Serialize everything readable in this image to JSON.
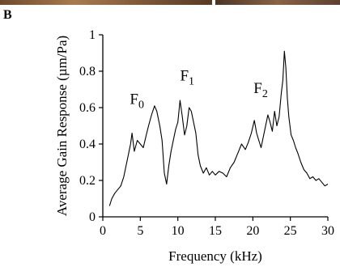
{
  "panel_label": "B",
  "chart_data": {
    "type": "line",
    "title": "",
    "xlabel": "Frequency (kHz)",
    "ylabel": "Average Gain Response (µm/Pa)",
    "xlim": [
      0,
      30
    ],
    "ylim": [
      0,
      1
    ],
    "xticks": [
      0,
      5,
      10,
      15,
      20,
      25,
      30
    ],
    "yticks": [
      0,
      0.2,
      0.4,
      0.6,
      0.8,
      1
    ],
    "ytick_labels": [
      "0",
      "0.2",
      "0.4",
      "0.6",
      "0.8",
      "1"
    ],
    "grid": false,
    "annotations": [
      {
        "text": "F",
        "sub": "0",
        "x": 3.6,
        "y": 0.62
      },
      {
        "text": "F",
        "sub": "1",
        "x": 10.3,
        "y": 0.75
      },
      {
        "text": "F",
        "sub": "2",
        "x": 20.1,
        "y": 0.68
      }
    ],
    "series": [
      {
        "x": [
          0.9,
          1.2,
          1.6,
          2.0,
          2.4,
          2.8,
          3.1,
          3.4,
          3.7,
          3.9,
          4.2,
          4.6,
          5.0,
          5.4,
          5.8,
          6.1,
          6.5,
          6.9,
          7.2,
          7.6,
          7.9,
          8.2,
          8.5,
          8.8,
          9.1,
          9.4,
          9.7,
          10.0,
          10.3,
          10.6,
          10.9,
          11.2,
          11.5,
          11.8,
          12.1,
          12.4,
          12.7,
          13.0,
          13.4,
          13.8,
          14.2,
          14.6,
          15.0,
          15.5,
          16.0,
          16.5,
          17.0,
          17.5,
          18.0,
          18.5,
          19.0,
          19.4,
          19.8,
          20.2,
          20.5,
          20.8,
          21.1,
          21.4,
          21.7,
          22.0,
          22.3,
          22.6,
          22.9,
          23.2,
          23.5,
          23.8,
          24.0,
          24.2,
          24.4,
          24.6,
          24.8,
          25.1,
          25.4,
          25.7,
          26.0,
          26.4,
          26.8,
          27.2,
          27.6,
          28.0,
          28.4,
          28.8,
          29.2,
          29.6,
          30.0
        ],
        "y": [
          0.06,
          0.1,
          0.13,
          0.15,
          0.17,
          0.22,
          0.28,
          0.34,
          0.4,
          0.46,
          0.36,
          0.42,
          0.4,
          0.38,
          0.45,
          0.5,
          0.56,
          0.61,
          0.58,
          0.5,
          0.42,
          0.24,
          0.18,
          0.28,
          0.36,
          0.42,
          0.48,
          0.52,
          0.64,
          0.55,
          0.45,
          0.5,
          0.6,
          0.58,
          0.52,
          0.46,
          0.34,
          0.28,
          0.24,
          0.27,
          0.23,
          0.25,
          0.23,
          0.25,
          0.24,
          0.22,
          0.27,
          0.3,
          0.35,
          0.4,
          0.37,
          0.41,
          0.46,
          0.53,
          0.46,
          0.42,
          0.38,
          0.44,
          0.5,
          0.56,
          0.52,
          0.47,
          0.58,
          0.5,
          0.55,
          0.68,
          0.75,
          0.91,
          0.82,
          0.65,
          0.55,
          0.45,
          0.42,
          0.38,
          0.35,
          0.3,
          0.26,
          0.24,
          0.21,
          0.22,
          0.2,
          0.21,
          0.19,
          0.17,
          0.18
        ]
      }
    ]
  }
}
